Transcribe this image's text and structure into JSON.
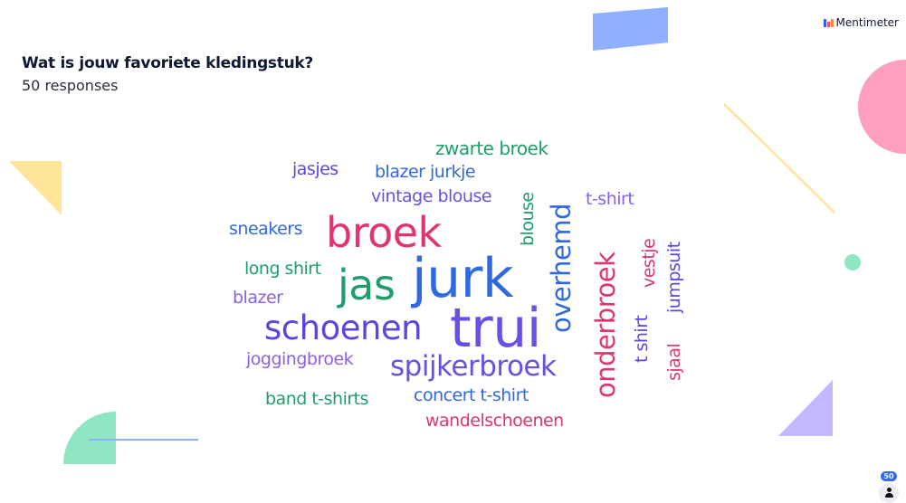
{
  "presentation": {
    "brand": "Mentimeter",
    "question": "Wat is jouw favoriete kledingstuk?",
    "responses_label": "50 responses",
    "response_count": "50"
  },
  "wordcloud": [
    {
      "text": "zwarte broek",
      "color": "#1f9e6c"
    },
    {
      "text": "jasjes",
      "color": "#5b46e0"
    },
    {
      "text": "blazer jurkje",
      "color": "#3068e0"
    },
    {
      "text": "vintage blouse",
      "color": "#6a4ee6"
    },
    {
      "text": "blouse",
      "color": "#1f9e6c"
    },
    {
      "text": "overhemd",
      "color": "#3068e0"
    },
    {
      "text": "t-shirt",
      "color": "#8a60e8"
    },
    {
      "text": "sneakers",
      "color": "#3068e0"
    },
    {
      "text": "broek",
      "color": "#e0356e"
    },
    {
      "text": "long shirt",
      "color": "#1f9e6c"
    },
    {
      "text": "jas",
      "color": "#1f9e6c"
    },
    {
      "text": "jurk",
      "color": "#3068e0"
    },
    {
      "text": "blazer",
      "color": "#8a60e8"
    },
    {
      "text": "onderbroek",
      "color": "#e0356e"
    },
    {
      "text": "vestje",
      "color": "#e0356e"
    },
    {
      "text": "jumpsuit",
      "color": "#5b46e0"
    },
    {
      "text": "schoenen",
      "color": "#5b46e0"
    },
    {
      "text": "trui",
      "color": "#6a4ee6"
    },
    {
      "text": "t shirt",
      "color": "#5b46e0"
    },
    {
      "text": "sjaal",
      "color": "#e0356e"
    },
    {
      "text": "joggingbroek",
      "color": "#8a60e8"
    },
    {
      "text": "spijkerbroek",
      "color": "#6a4ee6"
    },
    {
      "text": "band t-shirts",
      "color": "#1f9e6c"
    },
    {
      "text": "concert t-shirt",
      "color": "#3068e0"
    },
    {
      "text": "wandelschoenen",
      "color": "#e0356e"
    }
  ],
  "decor_colors": {
    "blue": "#8eb0ff",
    "yellow": "#ffe59a",
    "pink": "#ff9fbe",
    "green": "#8ee6c2",
    "purple": "#c3b8ff"
  }
}
